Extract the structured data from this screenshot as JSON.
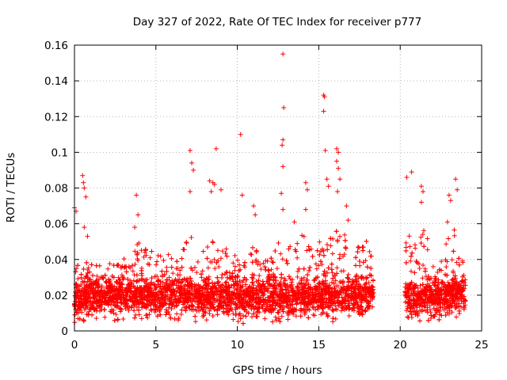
{
  "chart_data": {
    "type": "scatter",
    "title": "Day 327 of 2022, Rate Of TEC Index for receiver p777",
    "xlabel": "GPS time / hours",
    "ylabel": "ROTI / TECUs",
    "xlim": [
      0,
      25
    ],
    "ylim": [
      0,
      0.16
    ],
    "xticks": [
      "0",
      "5",
      "10",
      "15",
      "20",
      "25"
    ],
    "yticks": [
      "0",
      "0.02",
      "0.04",
      "0.06",
      "0.08",
      "0.1",
      "0.12",
      "0.14",
      "0.16"
    ],
    "grid": true,
    "marker": "+",
    "color": "#ff0000",
    "data_gap_hours": [
      18.4,
      20.3
    ],
    "outliers": [
      [
        0.0,
        0.069
      ],
      [
        0.1,
        0.067
      ],
      [
        0.5,
        0.087
      ],
      [
        0.55,
        0.083
      ],
      [
        0.6,
        0.08
      ],
      [
        0.7,
        0.075
      ],
      [
        0.6,
        0.058
      ],
      [
        0.8,
        0.053
      ],
      [
        3.8,
        0.076
      ],
      [
        3.9,
        0.065
      ],
      [
        3.7,
        0.058
      ],
      [
        7.1,
        0.101
      ],
      [
        7.2,
        0.094
      ],
      [
        7.3,
        0.09
      ],
      [
        7.1,
        0.078
      ],
      [
        8.3,
        0.084
      ],
      [
        8.5,
        0.083
      ],
      [
        8.6,
        0.082
      ],
      [
        8.7,
        0.102
      ],
      [
        8.4,
        0.078
      ],
      [
        9.0,
        0.079
      ],
      [
        10.2,
        0.11
      ],
      [
        10.3,
        0.076
      ],
      [
        11.0,
        0.07
      ],
      [
        11.1,
        0.065
      ],
      [
        12.8,
        0.155
      ],
      [
        12.85,
        0.125
      ],
      [
        12.8,
        0.107
      ],
      [
        12.75,
        0.104
      ],
      [
        12.8,
        0.092
      ],
      [
        12.7,
        0.077
      ],
      [
        12.8,
        0.068
      ],
      [
        13.5,
        0.061
      ],
      [
        14.2,
        0.083
      ],
      [
        14.3,
        0.079
      ],
      [
        14.2,
        0.068
      ],
      [
        15.3,
        0.132
      ],
      [
        15.35,
        0.131
      ],
      [
        15.3,
        0.123
      ],
      [
        15.4,
        0.101
      ],
      [
        15.5,
        0.085
      ],
      [
        15.6,
        0.081
      ],
      [
        16.1,
        0.102
      ],
      [
        16.2,
        0.1
      ],
      [
        16.1,
        0.095
      ],
      [
        16.2,
        0.091
      ],
      [
        16.3,
        0.085
      ],
      [
        16.15,
        0.078
      ],
      [
        16.7,
        0.07
      ],
      [
        16.8,
        0.062
      ],
      [
        20.4,
        0.086
      ],
      [
        20.7,
        0.089
      ],
      [
        21.3,
        0.081
      ],
      [
        21.4,
        0.078
      ],
      [
        21.3,
        0.072
      ],
      [
        23.0,
        0.076
      ],
      [
        23.1,
        0.073
      ],
      [
        23.4,
        0.085
      ],
      [
        23.5,
        0.079
      ],
      [
        22.9,
        0.061
      ]
    ],
    "envelope": [
      [
        0.0,
        0.003,
        0.036
      ],
      [
        0.5,
        0.005,
        0.04
      ],
      [
        1.0,
        0.006,
        0.037
      ],
      [
        1.5,
        0.006,
        0.038
      ],
      [
        2.0,
        0.006,
        0.038
      ],
      [
        2.5,
        0.005,
        0.039
      ],
      [
        3.0,
        0.006,
        0.041
      ],
      [
        3.5,
        0.007,
        0.046
      ],
      [
        4.0,
        0.006,
        0.052
      ],
      [
        4.5,
        0.006,
        0.046
      ],
      [
        5.0,
        0.006,
        0.044
      ],
      [
        5.5,
        0.006,
        0.05
      ],
      [
        6.0,
        0.006,
        0.042
      ],
      [
        6.5,
        0.006,
        0.04
      ],
      [
        7.0,
        0.006,
        0.058
      ],
      [
        7.5,
        0.005,
        0.042
      ],
      [
        8.0,
        0.006,
        0.047
      ],
      [
        8.5,
        0.006,
        0.052
      ],
      [
        9.0,
        0.005,
        0.055
      ],
      [
        9.5,
        0.004,
        0.046
      ],
      [
        10.0,
        0.004,
        0.042
      ],
      [
        10.5,
        0.004,
        0.038
      ],
      [
        11.0,
        0.004,
        0.049
      ],
      [
        11.5,
        0.005,
        0.038
      ],
      [
        12.0,
        0.005,
        0.042
      ],
      [
        12.5,
        0.005,
        0.05
      ],
      [
        13.0,
        0.004,
        0.046
      ],
      [
        13.5,
        0.005,
        0.05
      ],
      [
        14.0,
        0.005,
        0.055
      ],
      [
        14.5,
        0.005,
        0.048
      ],
      [
        15.0,
        0.005,
        0.052
      ],
      [
        15.5,
        0.005,
        0.056
      ],
      [
        16.0,
        0.005,
        0.06
      ],
      [
        16.5,
        0.006,
        0.058
      ],
      [
        17.0,
        0.006,
        0.05
      ],
      [
        17.5,
        0.006,
        0.052
      ],
      [
        18.0,
        0.006,
        0.055
      ],
      [
        18.4,
        0.008,
        0.038
      ],
      [
        20.3,
        0.008,
        0.05
      ],
      [
        20.5,
        0.005,
        0.055
      ],
      [
        21.0,
        0.004,
        0.05
      ],
      [
        21.5,
        0.005,
        0.058
      ],
      [
        22.0,
        0.006,
        0.042
      ],
      [
        22.5,
        0.006,
        0.04
      ],
      [
        23.0,
        0.006,
        0.055
      ],
      [
        23.5,
        0.008,
        0.06
      ],
      [
        24.0,
        0.008,
        0.035
      ]
    ]
  }
}
